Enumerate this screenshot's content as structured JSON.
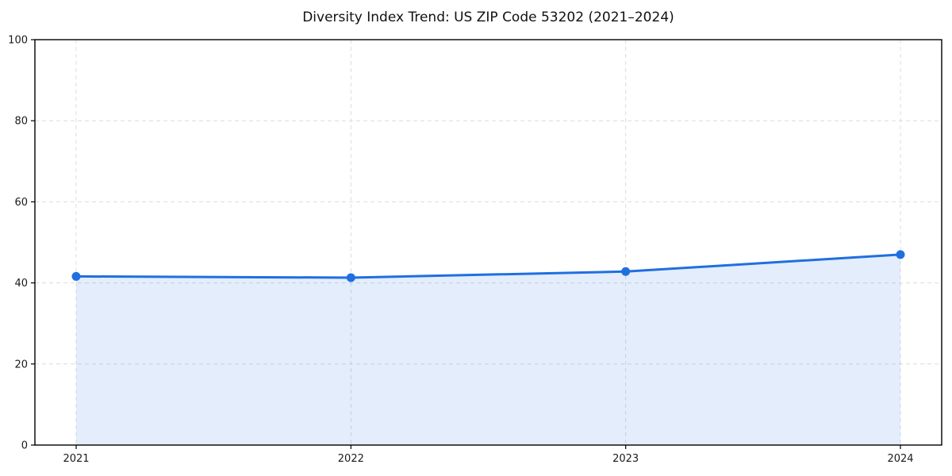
{
  "chart_data": {
    "type": "line",
    "title": "Diversity Index Trend: US ZIP Code 53202 (2021–2024)",
    "categories": [
      "2021",
      "2022",
      "2023",
      "2024"
    ],
    "series": [
      {
        "name": "Diversity Index",
        "values": [
          41.6,
          41.3,
          42.8,
          47.0
        ]
      }
    ],
    "xlabel": "",
    "ylabel": "",
    "ylim": [
      0,
      100
    ],
    "yticks": [
      0,
      20,
      40,
      60,
      80,
      100
    ],
    "grid": "dashed",
    "legend": "none",
    "area_fill": true,
    "colors": {
      "line": "#1f6fe0",
      "marker": "#1f6fe0",
      "fill": "#1f6fe0",
      "fill_opacity": 0.12,
      "grid": "#dcdcdc",
      "spine": "#000000",
      "tick_text": "#1a1a1a",
      "background": "#ffffff"
    }
  }
}
